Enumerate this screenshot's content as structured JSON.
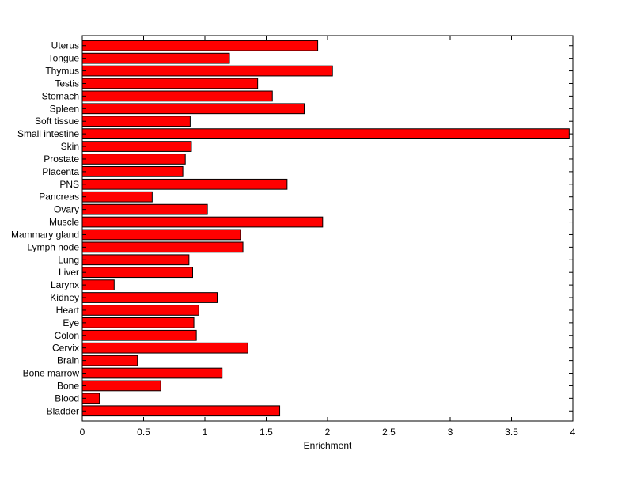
{
  "chart_data": {
    "type": "bar",
    "orientation": "horizontal",
    "title": "",
    "xlabel": "Enrichment",
    "ylabel": "",
    "xlim": [
      0,
      4
    ],
    "xticks": [
      0,
      0.5,
      1,
      1.5,
      2,
      2.5,
      3,
      3.5,
      4
    ],
    "xtick_labels": [
      "0",
      "0.5",
      "1",
      "1.5",
      "2",
      "2.5",
      "3",
      "3.5",
      "4"
    ],
    "grid": false,
    "bar_color": "#ff0000",
    "bar_edge_color": "#000000",
    "categories": [
      "Uterus",
      "Tongue",
      "Thymus",
      "Testis",
      "Stomach",
      "Spleen",
      "Soft tissue",
      "Small intestine",
      "Skin",
      "Prostate",
      "Placenta",
      "PNS",
      "Pancreas",
      "Ovary",
      "Muscle",
      "Mammary gland",
      "Lymph node",
      "Lung",
      "Liver",
      "Larynx",
      "Kidney",
      "Heart",
      "Eye",
      "Colon",
      "Cervix",
      "Brain",
      "Bone marrow",
      "Bone",
      "Blood",
      "Bladder"
    ],
    "values": [
      1.92,
      1.2,
      2.04,
      1.43,
      1.55,
      1.81,
      0.88,
      3.97,
      0.89,
      0.84,
      0.82,
      1.67,
      0.57,
      1.02,
      1.96,
      1.29,
      1.31,
      0.87,
      0.9,
      0.26,
      1.1,
      0.95,
      0.91,
      0.93,
      1.35,
      0.45,
      1.14,
      0.64,
      0.14,
      1.61
    ]
  }
}
